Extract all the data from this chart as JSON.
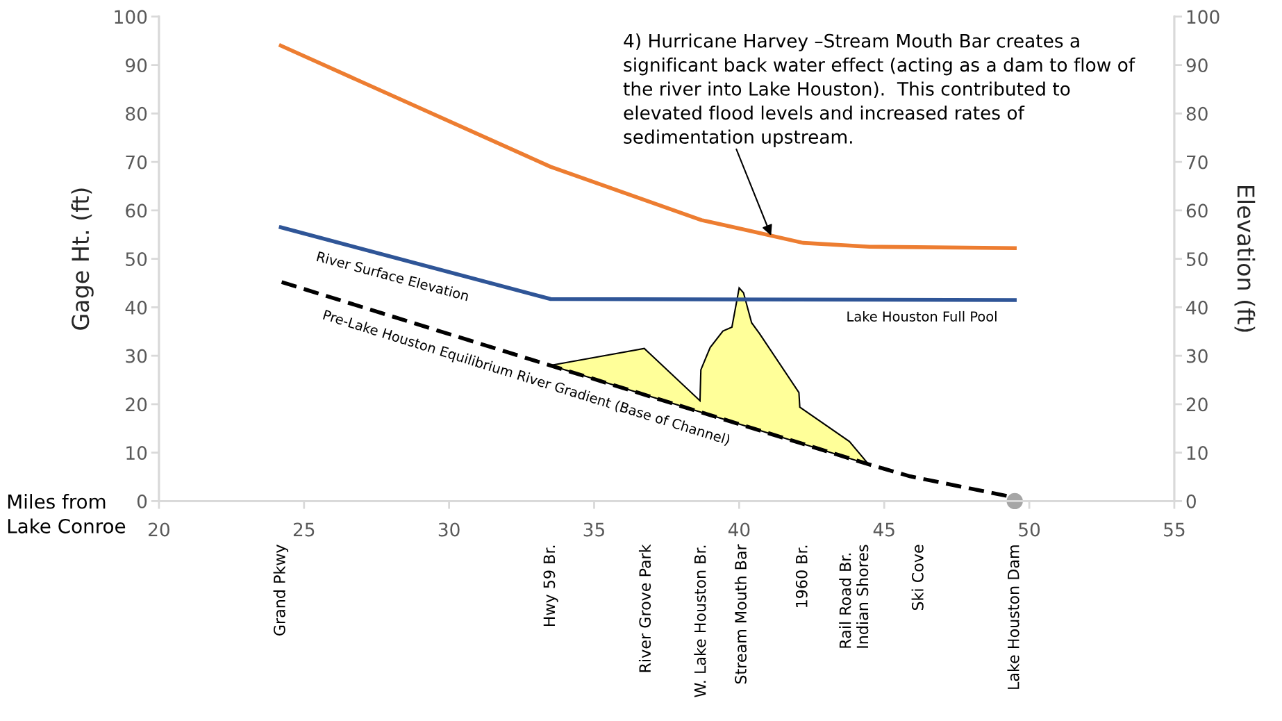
{
  "chart_data": {
    "type": "line",
    "xlabel": "Miles from\nLake Conroe",
    "ylabel": "Gage Ht. (ft)",
    "y2label": "Elevation (ft)",
    "xlim": [
      20,
      55
    ],
    "xticks": [
      20,
      25,
      30,
      35,
      40,
      45,
      50,
      55
    ],
    "ylim": [
      0,
      100
    ],
    "yticks": [
      0,
      10,
      20,
      30,
      40,
      50,
      60,
      70,
      80,
      90,
      100
    ],
    "y2lim": [
      0,
      100
    ],
    "y2ticks": [
      0,
      10,
      20,
      30,
      40,
      50,
      60,
      70,
      80,
      90,
      100
    ],
    "grid": false,
    "legend": false,
    "series": [
      {
        "type": "area",
        "color": "#ffff99",
        "x": [
          33.5,
          36.73,
          38.65,
          38.68,
          39.0,
          39.44,
          39.75,
          40.0,
          40.15,
          40.43,
          40.7,
          42.06,
          42.09,
          43.8,
          44.46
        ],
        "values": [
          28.0,
          31.5,
          20.7,
          27.1,
          31.7,
          35.1,
          35.9,
          44.0,
          43.0,
          36.8,
          34.6,
          22.4,
          19.4,
          12.3,
          7.6
        ]
      },
      {
        "color": "#ed7d31",
        "x": [
          24.2,
          33.5,
          38.7,
          40.2,
          42.2,
          44.5,
          49.5
        ],
        "values": [
          94,
          69,
          58,
          56,
          53.3,
          52.5,
          52.2
        ]
      },
      {
        "name": "River Surface Elevation",
        "color": "#2f5597",
        "x": [
          24.2,
          33.5,
          49.5
        ],
        "values": [
          56.5,
          41.7,
          41.5
        ]
      },
      {
        "name": "Pre-Lake Houston Equilibrium River Gradient (Base of Channel)",
        "color": "#000000",
        "line_style": "dashed",
        "x": [
          24.23,
          44.46,
          45.9,
          49.45
        ],
        "values": [
          45.2,
          7.6,
          5.1,
          0.8
        ]
      },
      {
        "type": "scatter",
        "color": "#a6a6a6",
        "marker": "circle",
        "x": [
          49.5
        ],
        "values": [
          0
        ]
      }
    ],
    "annotations": [
      {
        "text": "4) Hurricane Harvey –Stream Mouth Bar creates a\nsignificant back water effect (acting as a dam to flow of\nthe river into Lake Houston).  This contributed to\nelevated flood levels and increased rates of\nsedimentation upstream.",
        "x": 41.1,
        "y": 54.8
      },
      {
        "text": "Lake Houston Full Pool",
        "x": 46.3,
        "y": 41.6
      },
      "Grand Pkwy",
      "Hwy 59 Br.",
      "River Grove Park",
      "W. Lake Houston Br.",
      "Stream Mouth Bar",
      "1960 Br.",
      "Rail Road Br.\nIndian Shores",
      "Ski Cove",
      "Lake Houston Dam"
    ]
  }
}
